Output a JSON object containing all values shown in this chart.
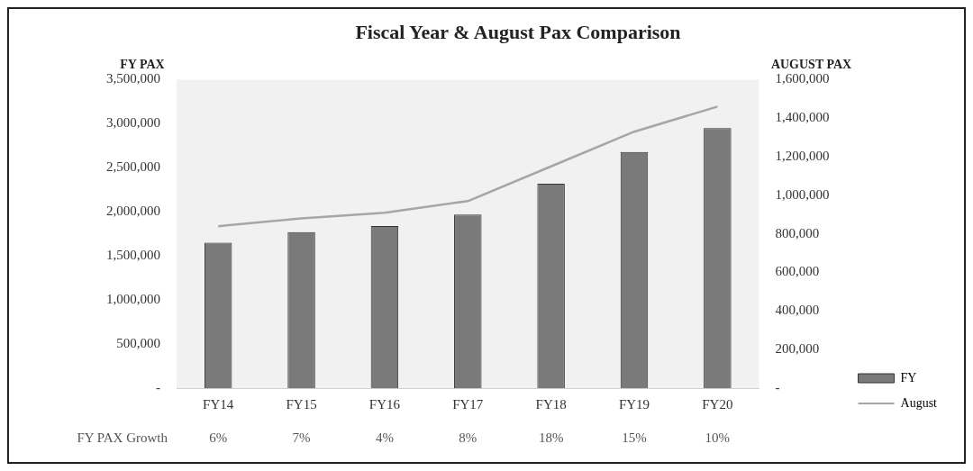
{
  "chart_data": {
    "type": "bar",
    "title": "Fiscal Year & August Pax Comparison",
    "ylabel": "FY PAX",
    "y2label": "AUGUST PAX",
    "categories": [
      "FY14",
      "FY15",
      "FY16",
      "FY17",
      "FY18",
      "FY19",
      "FY20"
    ],
    "series": [
      {
        "name": "FY",
        "color": "#7a7a7a",
        "values": [
          1650000,
          1770000,
          1840000,
          1970000,
          2320000,
          2680000,
          2950000
        ]
      },
      {
        "name": "August",
        "type": "line",
        "axis": "y2",
        "color": "#a6a6a6",
        "values": [
          840000,
          880000,
          910000,
          970000,
          1150000,
          1330000,
          1460000
        ]
      }
    ],
    "ylim": [
      0,
      3500000
    ],
    "yticks": [
      {
        "value": 0,
        "label": "-"
      },
      {
        "value": 500000,
        "label": "500,000"
      },
      {
        "value": 1000000,
        "label": "1,000,000"
      },
      {
        "value": 1500000,
        "label": "1,500,000"
      },
      {
        "value": 2000000,
        "label": "2,000,000"
      },
      {
        "value": 2500000,
        "label": "2,500,000"
      },
      {
        "value": 3000000,
        "label": "3,000,000"
      },
      {
        "value": 3500000,
        "label": "3,500,000"
      }
    ],
    "y2lim": [
      0,
      1600000
    ],
    "y2ticks": [
      {
        "value": 0,
        "label": "-"
      },
      {
        "value": 200000,
        "label": "200,000"
      },
      {
        "value": 400000,
        "label": "400,000"
      },
      {
        "value": 600000,
        "label": "600,000"
      },
      {
        "value": 800000,
        "label": "800,000"
      },
      {
        "value": 1000000,
        "label": "1,000,000"
      },
      {
        "value": 1200000,
        "label": "1,200,000"
      },
      {
        "value": 1400000,
        "label": "1,400,000"
      },
      {
        "value": 1600000,
        "label": "1,600,000"
      }
    ],
    "annotations": [
      "FY PAX Growth",
      "6%",
      "7%",
      "4%",
      "8%",
      "18%",
      "15%",
      "10%"
    ],
    "legend": "bottom right",
    "grid": false,
    "marker": "none"
  }
}
